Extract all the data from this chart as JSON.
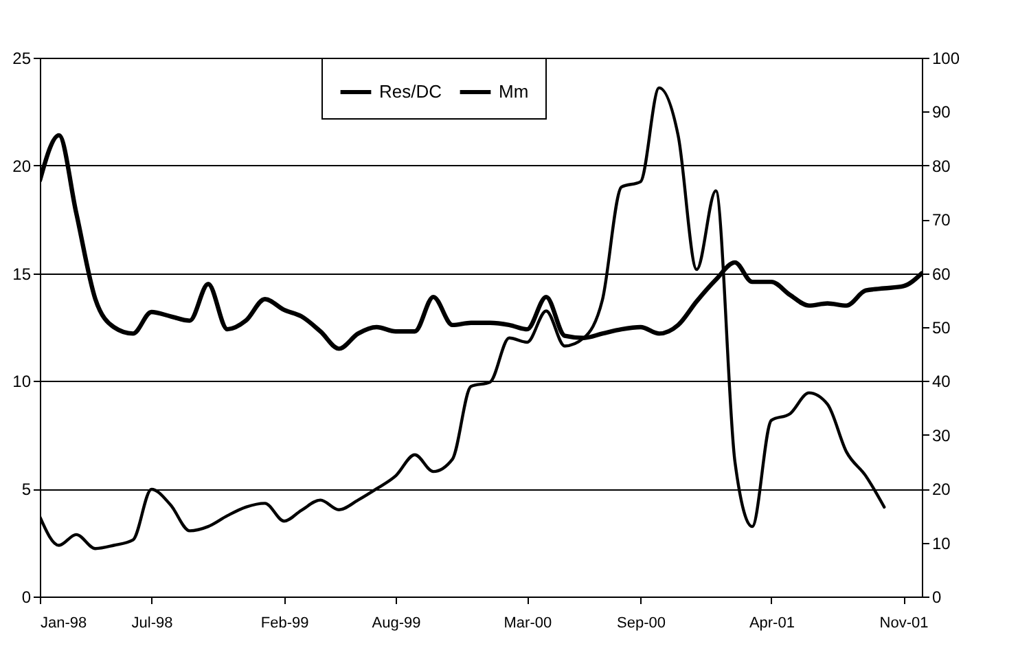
{
  "chart_data": {
    "type": "line",
    "x": [
      "1998-01",
      "1998-02",
      "1998-03",
      "1998-04",
      "1998-05",
      "1998-06",
      "1998-07",
      "1998-08",
      "1998-09",
      "1998-10",
      "1998-11",
      "1998-12",
      "1999-01",
      "1999-02",
      "1999-03",
      "1999-04",
      "1999-05",
      "1999-06",
      "1999-07",
      "1999-08",
      "1999-09",
      "1999-10",
      "1999-11",
      "1999-12",
      "2000-01",
      "2000-02",
      "2000-03",
      "2000-04",
      "2000-05",
      "2000-06",
      "2000-07",
      "2000-08",
      "2000-09",
      "2000-10",
      "2000-11",
      "2000-12",
      "2001-01",
      "2001-02",
      "2001-03",
      "2001-04",
      "2001-05",
      "2001-06",
      "2001-07",
      "2001-08",
      "2001-09",
      "2001-10",
      "2001-11",
      "2001-12"
    ],
    "series": [
      {
        "name": "Res/DC",
        "color": "#000000",
        "values": [
          19.3,
          21.4,
          17.8,
          13.8,
          12.5,
          12.2,
          13.2,
          13.0,
          12.8,
          14.5,
          12.4,
          12.8,
          13.8,
          13.3,
          13.0,
          12.3,
          11.5,
          12.2,
          12.5,
          12.3,
          12.3,
          13.9,
          12.6,
          12.7,
          12.7,
          12.6,
          12.4,
          13.9,
          12.1,
          12.0,
          12.2,
          12.4,
          12.5,
          12.2,
          12.6,
          13.7,
          14.7,
          15.5,
          14.6,
          14.6,
          14.0,
          13.5,
          13.6,
          13.5,
          14.2,
          14.3,
          14.4,
          15.0
        ]
      },
      {
        "name": "Mm",
        "color": "#000000",
        "axis": "y2",
        "values": [
          14.8,
          9.5,
          11.5,
          8.9,
          9.5,
          10.5,
          19.9,
          17,
          12.2,
          13,
          15,
          16.6,
          17.3,
          14,
          16,
          17.9,
          16.1,
          17.9,
          20,
          22.4,
          26.3,
          23.2,
          25.5,
          39,
          39.8,
          48,
          47.2,
          53,
          46.5,
          48,
          55,
          76,
          77,
          94.4,
          85.5,
          60.7,
          75.3,
          25,
          13,
          32.7,
          33.9,
          37.8,
          35.7,
          26.8,
          22.4,
          16.6,
          null,
          null
        ]
      }
    ],
    "xlim": [
      "1998-01",
      "2001-12"
    ],
    "xticks": [
      {
        "value": "1998-01",
        "label": "Jan-98"
      },
      {
        "value": "1998-07",
        "label": "Jul-98"
      },
      {
        "value": "1999-02",
        "label": "Feb-99"
      },
      {
        "value": "1999-08",
        "label": "Aug-99"
      },
      {
        "value": "2000-03",
        "label": "Mar-00"
      },
      {
        "value": "2000-09",
        "label": "Sep-00"
      },
      {
        "value": "2001-04",
        "label": "Apr-01"
      },
      {
        "value": "2001-11",
        "label": "Nov-01"
      }
    ],
    "ylim": [
      0,
      25
    ],
    "yticks": [
      0,
      5,
      10,
      15,
      20,
      25
    ],
    "y2lim": [
      0,
      100
    ],
    "y2ticks": [
      0,
      10,
      20,
      30,
      40,
      50,
      60,
      70,
      80,
      90,
      100
    ],
    "grid": "y",
    "legend": "top",
    "marker": "none",
    "line_style": "solid"
  }
}
